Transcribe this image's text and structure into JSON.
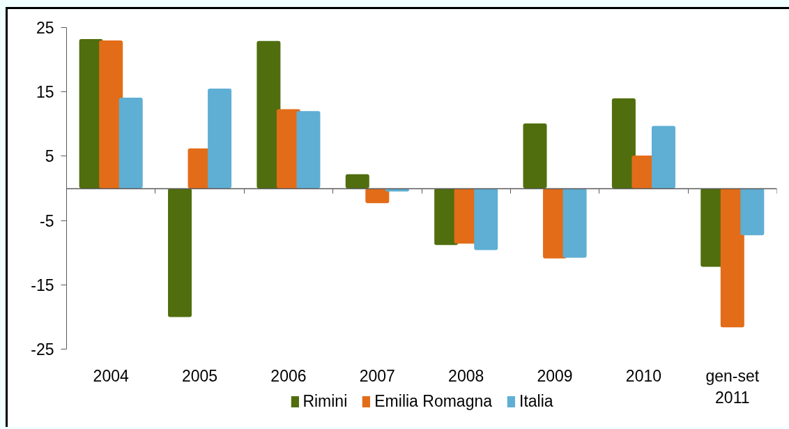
{
  "chart_data": {
    "type": "bar",
    "categories": [
      "2004",
      "2005",
      "2006",
      "2007",
      "2008",
      "2009",
      "2010",
      "gen-set 2011"
    ],
    "series": [
      {
        "name": "Rimini",
        "color": "#506e0e",
        "values": [
          23.2,
          -20.0,
          22.9,
          2.2,
          -8.8,
          10.1,
          14.0,
          -12.2
        ]
      },
      {
        "name": "Emilia Romagna",
        "color": "#e36c18",
        "values": [
          23.0,
          6.2,
          12.3,
          -2.3,
          -8.6,
          -10.9,
          5.1,
          -21.6
        ]
      },
      {
        "name": "Italia",
        "color": "#5faed4",
        "values": [
          14.1,
          15.5,
          12.0,
          -0.5,
          -9.6,
          -10.8,
          9.7,
          -7.3
        ]
      }
    ],
    "ylim": [
      -25,
      25
    ],
    "yticks": [
      25,
      15,
      5,
      -5,
      -15,
      -25
    ],
    "grid": false,
    "legend": "bottom"
  }
}
